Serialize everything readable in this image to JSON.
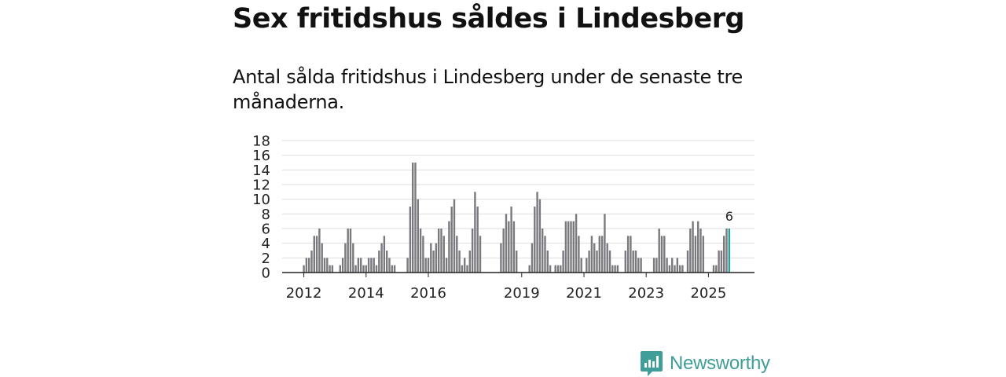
{
  "title": "Sex fritidshus såldes i Lindesberg",
  "subtitle": "Antal sålda fritidshus i Lindesberg under de senaste tre månaderna.",
  "brand": {
    "name": "Newsworthy",
    "color": "#3f9e98"
  },
  "chart_data": {
    "type": "bar",
    "title": "Sex fritidshus såldes i Lindesberg",
    "xlabel": "",
    "ylabel": "",
    "ylim": [
      0,
      18
    ],
    "yticks": [
      0,
      2,
      4,
      6,
      8,
      10,
      12,
      14,
      16,
      18
    ],
    "start": {
      "year": 2011,
      "month": 5
    },
    "x_tick_labels": [
      "2012",
      "2014",
      "2016",
      "2019",
      "2021",
      "2023",
      "2025"
    ],
    "x_tick_years": [
      2012,
      2014,
      2016,
      2019,
      2021,
      2023,
      2025
    ],
    "bar_color": "#7a797e",
    "highlight_color": "#1fa59d",
    "highlight_label": "6",
    "values": [
      0,
      0,
      0,
      0,
      0,
      0,
      0,
      0,
      1,
      2,
      2,
      3,
      5,
      5,
      6,
      4,
      2,
      2,
      1,
      1,
      0,
      0,
      1,
      2,
      4,
      6,
      6,
      4,
      1,
      2,
      2,
      1,
      1,
      2,
      2,
      2,
      1,
      3,
      4,
      5,
      3,
      2,
      1,
      1,
      0,
      0,
      0,
      0,
      2,
      9,
      15,
      15,
      10,
      6,
      5,
      2,
      2,
      4,
      3,
      4,
      6,
      6,
      5,
      2,
      7,
      9,
      10,
      5,
      3,
      1,
      2,
      1,
      3,
      6,
      11,
      9,
      5,
      0,
      0,
      0,
      0,
      0,
      0,
      0,
      4,
      6,
      8,
      7,
      9,
      7,
      3,
      0,
      0,
      0,
      0,
      1,
      4,
      9,
      11,
      10,
      6,
      5,
      3,
      1,
      0,
      1,
      1,
      1,
      3,
      7,
      7,
      7,
      7,
      8,
      5,
      2,
      0,
      2,
      3,
      5,
      4,
      3,
      5,
      5,
      8,
      4,
      3,
      1,
      1,
      1,
      0,
      0,
      3,
      5,
      5,
      3,
      3,
      2,
      2,
      0,
      0,
      0,
      0,
      2,
      2,
      6,
      5,
      5,
      2,
      1,
      2,
      1,
      2,
      1,
      1,
      0,
      3,
      6,
      7,
      5,
      7,
      6,
      5,
      0,
      0,
      0,
      1,
      1,
      3,
      3,
      5,
      6,
      6
    ]
  }
}
